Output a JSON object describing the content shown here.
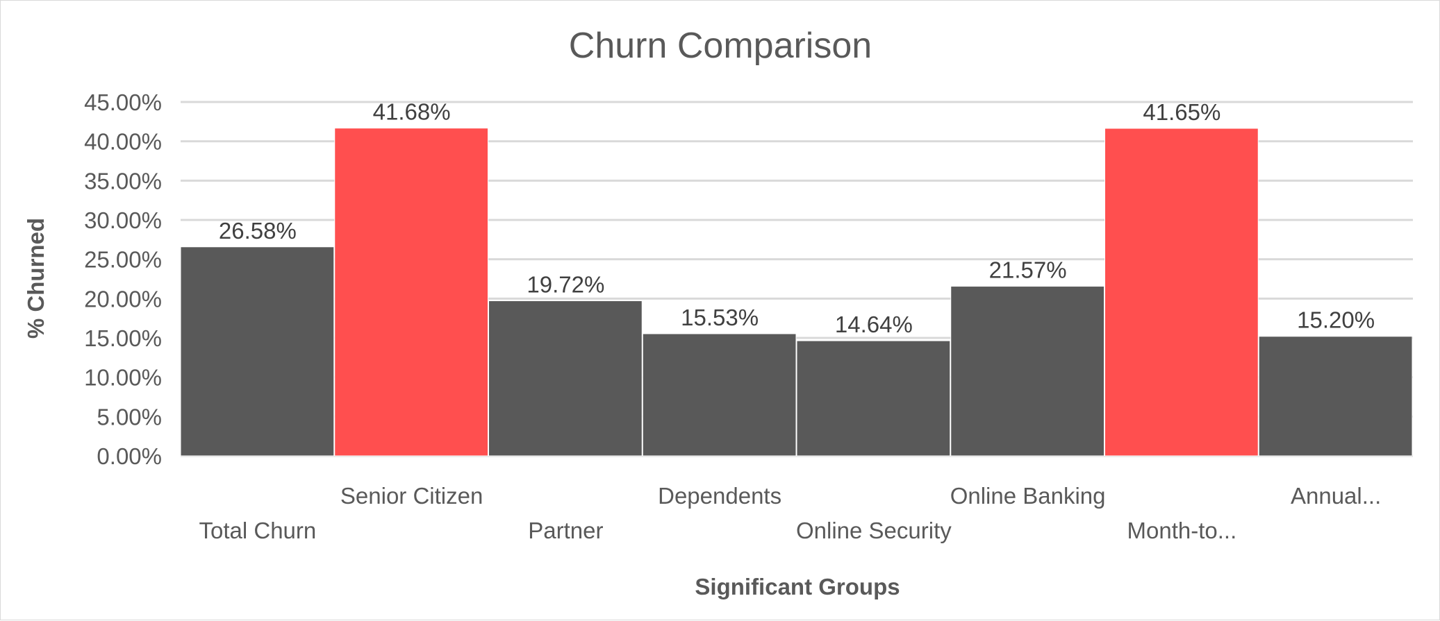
{
  "chart_data": {
    "type": "bar",
    "title": "Churn Comparison",
    "xlabel": "Significant Groups",
    "ylabel": "% Churned",
    "categories": [
      "Total Churn",
      "Senior Citizen",
      "Partner",
      "Dependents",
      "Online Security",
      "Online Banking",
      "Month-to...",
      "Annual..."
    ],
    "values": [
      26.58,
      41.68,
      19.72,
      15.53,
      14.64,
      21.57,
      41.65,
      15.2
    ],
    "data_labels": [
      "26.58%",
      "41.68%",
      "19.72%",
      "15.53%",
      "14.64%",
      "21.57%",
      "41.65%",
      "15.20%"
    ],
    "bar_colors": [
      "#595959",
      "#ff4f4f",
      "#595959",
      "#595959",
      "#595959",
      "#595959",
      "#ff4f4f",
      "#595959"
    ],
    "ylim": [
      0,
      45
    ],
    "yticks": [
      "0.00%",
      "5.00%",
      "10.00%",
      "15.00%",
      "20.00%",
      "25.00%",
      "30.00%",
      "35.00%",
      "40.00%",
      "45.00%"
    ],
    "grid": true,
    "legend": "none"
  }
}
